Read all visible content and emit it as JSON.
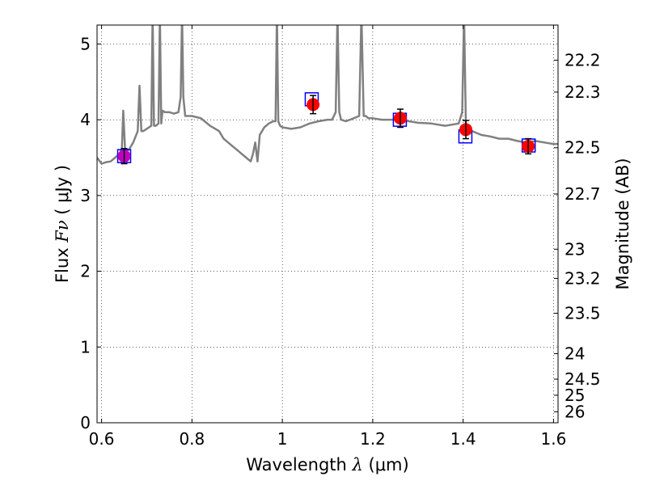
{
  "chart_data": {
    "type": "line",
    "title": "",
    "xlabel": {
      "pre": "Wavelength ",
      "var": "λ",
      "post": " (μm)"
    },
    "ylabel": {
      "pre": "Flux ",
      "var": "Fν",
      "post": " ( μJy )"
    },
    "y2label": "Magnitude (AB)",
    "xlim": [
      0.59,
      1.61
    ],
    "ylim": [
      0,
      5.25
    ],
    "x_ticks": [
      0.6,
      0.8,
      1.0,
      1.2,
      1.4,
      1.6
    ],
    "x_tick_labels": [
      "0.6",
      "0.8",
      "1",
      "1.2",
      "1.4",
      "1.6"
    ],
    "y_ticks": [
      0,
      1,
      2,
      3,
      4,
      5
    ],
    "y_tick_labels": [
      "0",
      "1",
      "2",
      "3",
      "4",
      "5"
    ],
    "y2_ticks": [
      {
        "mag": 22.2,
        "label": "22.2"
      },
      {
        "mag": 22.3,
        "label": "22.3"
      },
      {
        "mag": 22.5,
        "label": "22.5"
      },
      {
        "mag": 22.7,
        "label": "22.7"
      },
      {
        "mag": 23.0,
        "label": "23"
      },
      {
        "mag": 23.2,
        "label": "23.2"
      },
      {
        "mag": 23.5,
        "label": "23.5"
      },
      {
        "mag": 24.0,
        "label": "24"
      },
      {
        "mag": 24.5,
        "label": "24.5"
      },
      {
        "mag": 25.0,
        "label": "25"
      },
      {
        "mag": 26.0,
        "label": "26"
      }
    ],
    "grid": true,
    "colors": {
      "spectrum": "#808080",
      "model_box": "#0000ff",
      "observed": "#ff0000",
      "observed_first": "#bf00bf",
      "errorbar": "#000000"
    },
    "spectrum": {
      "x": [
        0.59,
        0.6,
        0.61,
        0.62,
        0.63,
        0.64,
        0.645,
        0.648,
        0.652,
        0.66,
        0.67,
        0.68,
        0.684,
        0.688,
        0.692,
        0.7,
        0.71,
        0.713,
        0.716,
        0.72,
        0.726,
        0.729,
        0.732,
        0.735,
        0.74,
        0.75,
        0.76,
        0.77,
        0.775,
        0.778,
        0.781,
        0.785,
        0.8,
        0.82,
        0.84,
        0.86,
        0.87,
        0.88,
        0.89,
        0.9,
        0.91,
        0.92,
        0.93,
        0.935,
        0.94,
        0.945,
        0.95,
        0.955,
        0.96,
        0.97,
        0.98,
        0.985,
        0.988,
        0.991,
        0.995,
        1.0,
        1.02,
        1.04,
        1.06,
        1.08,
        1.1,
        1.11,
        1.118,
        1.122,
        1.126,
        1.13,
        1.14,
        1.15,
        1.17,
        1.175,
        1.18,
        1.185,
        1.19,
        1.2,
        1.22,
        1.25,
        1.28,
        1.3,
        1.33,
        1.36,
        1.39,
        1.398,
        1.402,
        1.406,
        1.41,
        1.42,
        1.44,
        1.46,
        1.48,
        1.5,
        1.52,
        1.54,
        1.56,
        1.58,
        1.6,
        1.61
      ],
      "y": [
        3.5,
        3.42,
        3.44,
        3.45,
        3.5,
        3.55,
        3.62,
        4.12,
        3.62,
        3.6,
        3.7,
        3.85,
        4.45,
        3.85,
        3.85,
        3.88,
        3.92,
        5.4,
        3.92,
        3.92,
        3.95,
        5.4,
        3.95,
        4.12,
        4.1,
        4.1,
        4.08,
        4.1,
        4.3,
        5.4,
        4.3,
        4.05,
        4.05,
        4.02,
        3.92,
        3.85,
        3.75,
        3.7,
        3.65,
        3.6,
        3.55,
        3.5,
        3.45,
        3.55,
        3.7,
        3.45,
        3.8,
        3.85,
        3.9,
        3.95,
        3.98,
        3.98,
        5.4,
        3.98,
        3.92,
        3.9,
        3.88,
        3.9,
        3.95,
        3.98,
        4.0,
        4.0,
        4.1,
        5.4,
        4.1,
        4.0,
        3.98,
        4.0,
        4.05,
        5.4,
        4.05,
        4.05,
        4.02,
        4.02,
        4.0,
        4.0,
        3.98,
        3.96,
        3.95,
        3.92,
        3.95,
        4.1,
        5.4,
        3.95,
        3.9,
        3.85,
        3.8,
        3.78,
        3.75,
        3.75,
        3.72,
        3.7,
        3.72,
        3.7,
        3.68,
        3.68
      ]
    },
    "model_points": [
      {
        "x": 0.65,
        "y": 3.52
      },
      {
        "x": 1.065,
        "y": 4.27
      },
      {
        "x": 1.26,
        "y": 4.0
      },
      {
        "x": 1.405,
        "y": 3.78
      },
      {
        "x": 1.545,
        "y": 3.66
      }
    ],
    "observed_points": [
      {
        "x": 0.65,
        "y": 3.52,
        "err": 0.1
      },
      {
        "x": 1.068,
        "y": 4.2,
        "err": 0.12
      },
      {
        "x": 1.261,
        "y": 4.02,
        "err": 0.12
      },
      {
        "x": 1.406,
        "y": 3.87,
        "err": 0.12
      },
      {
        "x": 1.544,
        "y": 3.65,
        "err": 0.1
      }
    ]
  }
}
